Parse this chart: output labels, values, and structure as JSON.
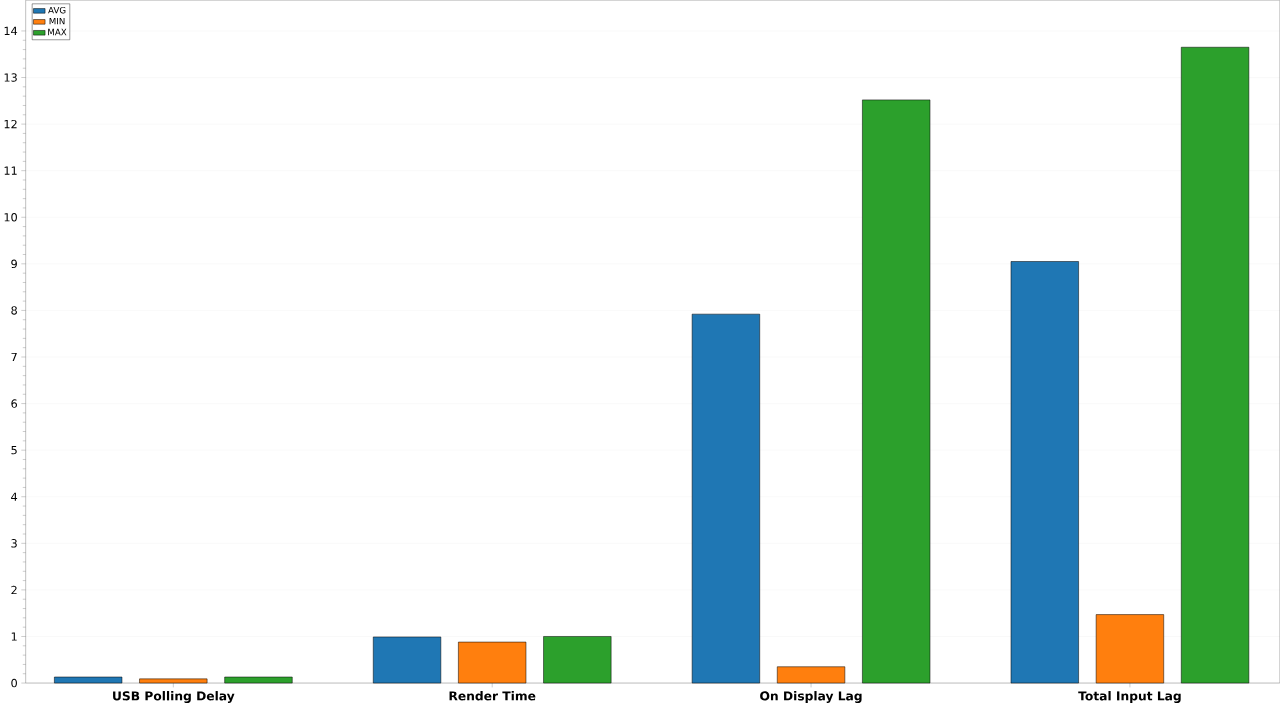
{
  "chart_data": {
    "type": "bar",
    "categories": [
      "USB Polling Delay",
      "Render Time",
      "On Display Lag",
      "Total Input Lag"
    ],
    "series": [
      {
        "name": "AVG",
        "color": "#1f77b4",
        "values": [
          0.13,
          0.99,
          7.92,
          9.05
        ]
      },
      {
        "name": "MIN",
        "color": "#ff7f0e",
        "values": [
          0.09,
          0.88,
          0.35,
          1.47
        ]
      },
      {
        "name": "MAX",
        "color": "#2ca02c",
        "values": [
          0.13,
          1.0,
          12.52,
          13.65
        ]
      }
    ],
    "ylim": [
      0,
      14.66
    ],
    "yticks": [
      0,
      1,
      2,
      3,
      4,
      5,
      6,
      7,
      8,
      9,
      10,
      11,
      12,
      13,
      14
    ],
    "grid": "y",
    "legend": "top left"
  }
}
